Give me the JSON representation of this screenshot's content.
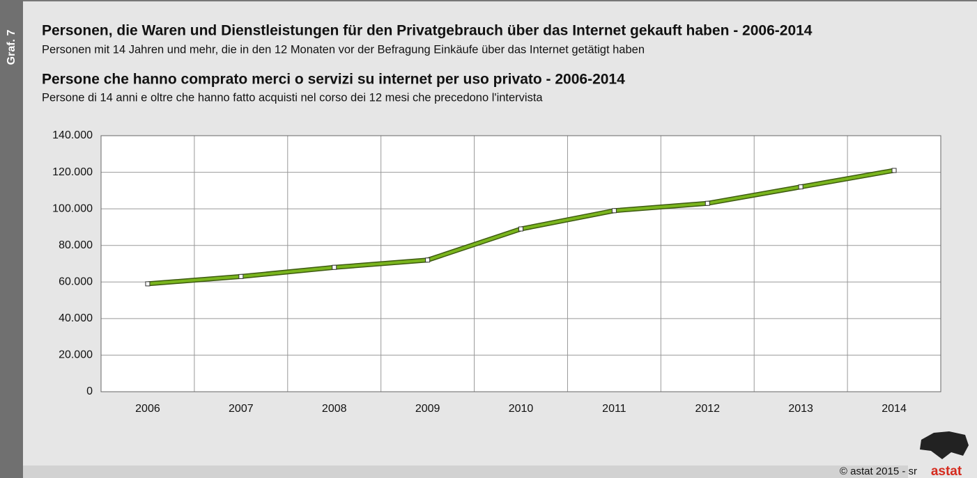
{
  "chart_data": {
    "type": "line",
    "chart_number": "Graf. 7",
    "title": "Personen, die Waren und Dienstleistungen für den Privatgebrauch über das Internet gekauft haben - 2006-2014",
    "subtitle": "Personen mit 14 Jahren und mehr, die in den 12 Monaten vor der Befragung Einkäufe über das Internet getätigt haben",
    "title_2": "Persone che hanno comprato merci o servizi su internet per uso privato - 2006-2014",
    "subtitle_2": "Persone di 14 anni e oltre che hanno fatto acquisti nel corso dei 12 mesi che precedono l'intervista",
    "copyright": "© astat 2015 - sr",
    "logo": "astat",
    "categories": [
      "2006",
      "2007",
      "2008",
      "2009",
      "2010",
      "2011",
      "2012",
      "2013",
      "2014"
    ],
    "values": [
      59000,
      63000,
      68000,
      72000,
      89000,
      99000,
      103000,
      112000,
      121000
    ],
    "color": "#7ab51d",
    "ylim": [
      0,
      140000
    ],
    "yticks": [
      0,
      {
        "value": 20000,
        "label": "20.000"
      },
      {
        "value": 40000,
        "label": "40.000"
      },
      {
        "value": 60000,
        "label": "60.000"
      },
      {
        "value": 80000,
        "label": "80.000"
      },
      {
        "value": 100000,
        "label": "100.000"
      },
      {
        "value": 120000,
        "label": "120.000"
      },
      {
        "value": 140000,
        "label": "140.000"
      }
    ],
    "grid": true
  }
}
